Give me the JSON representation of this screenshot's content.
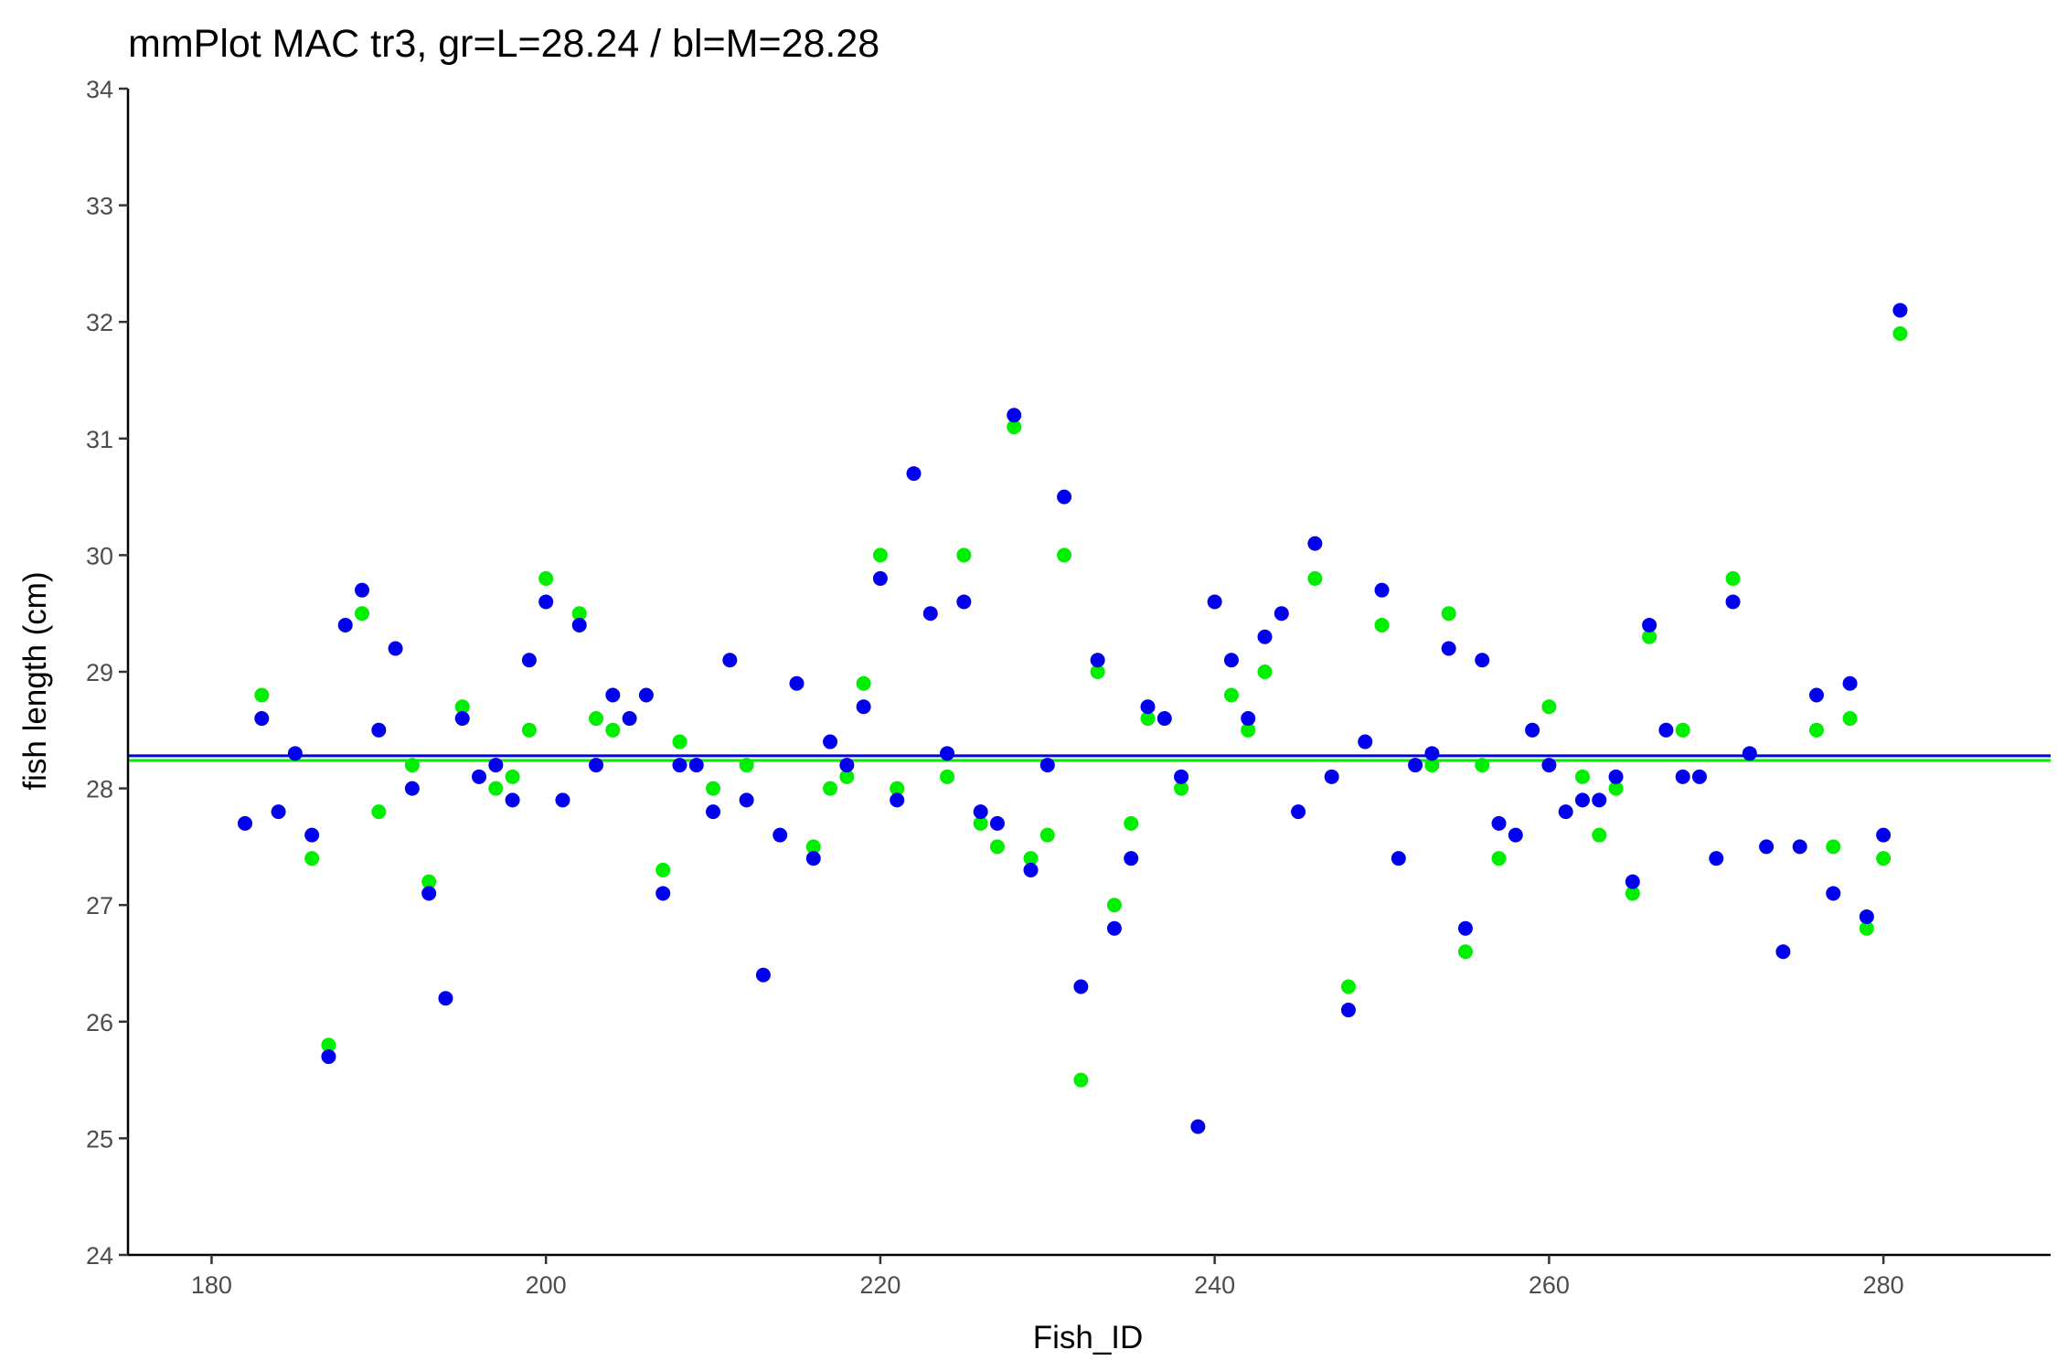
{
  "chart_data": {
    "type": "scatter",
    "title": "mmPlot MAC tr3, gr=L=28.24 / bl=M=28.28",
    "xlabel": "Fish_ID",
    "ylabel": "fish length (cm)",
    "xlim": [
      175,
      290
    ],
    "ylim": [
      24,
      34
    ],
    "xticks": [
      180,
      200,
      220,
      240,
      260,
      280
    ],
    "yticks": [
      24,
      25,
      26,
      27,
      28,
      29,
      30,
      31,
      32,
      33,
      34
    ],
    "grid": false,
    "legend": "none",
    "series": [
      {
        "color": "#00ee00",
        "mean_line": 28.24,
        "points": [
          [
            183,
            28.8
          ],
          [
            186,
            27.4
          ],
          [
            187,
            25.8
          ],
          [
            189,
            29.5
          ],
          [
            190,
            27.8
          ],
          [
            192,
            28.2
          ],
          [
            193,
            27.2
          ],
          [
            195,
            28.7
          ],
          [
            197,
            28.0
          ],
          [
            198,
            28.1
          ],
          [
            199,
            28.5
          ],
          [
            200,
            29.8
          ],
          [
            202,
            29.5
          ],
          [
            203,
            28.6
          ],
          [
            204,
            28.5
          ],
          [
            207,
            27.3
          ],
          [
            208,
            28.4
          ],
          [
            210,
            28.0
          ],
          [
            212,
            28.2
          ],
          [
            216,
            27.5
          ],
          [
            217,
            28.0
          ],
          [
            218,
            28.1
          ],
          [
            219,
            28.9
          ],
          [
            220,
            30.0
          ],
          [
            221,
            28.0
          ],
          [
            224,
            28.1
          ],
          [
            225,
            30.0
          ],
          [
            226,
            27.7
          ],
          [
            227,
            27.5
          ],
          [
            228,
            31.1
          ],
          [
            229,
            27.4
          ],
          [
            230,
            27.6
          ],
          [
            231,
            30.0
          ],
          [
            232,
            25.5
          ],
          [
            233,
            29.0
          ],
          [
            234,
            27.0
          ],
          [
            235,
            27.7
          ],
          [
            236,
            28.6
          ],
          [
            238,
            28.0
          ],
          [
            241,
            28.8
          ],
          [
            242,
            28.5
          ],
          [
            243,
            29.0
          ],
          [
            246,
            29.8
          ],
          [
            248,
            26.3
          ],
          [
            250,
            29.4
          ],
          [
            253,
            28.2
          ],
          [
            254,
            29.5
          ],
          [
            255,
            26.6
          ],
          [
            256,
            28.2
          ],
          [
            257,
            27.4
          ],
          [
            260,
            28.7
          ],
          [
            262,
            28.1
          ],
          [
            263,
            27.6
          ],
          [
            264,
            28.0
          ],
          [
            265,
            27.1
          ],
          [
            266,
            29.3
          ],
          [
            268,
            28.5
          ],
          [
            271,
            29.8
          ],
          [
            276,
            28.5
          ],
          [
            277,
            27.5
          ],
          [
            278,
            28.6
          ],
          [
            279,
            26.8
          ],
          [
            280,
            27.4
          ],
          [
            281,
            31.9
          ]
        ]
      },
      {
        "color": "#0000ee",
        "mean_line": 28.28,
        "points": [
          [
            182,
            27.7
          ],
          [
            183,
            28.6
          ],
          [
            184,
            27.8
          ],
          [
            185,
            28.3
          ],
          [
            186,
            27.6
          ],
          [
            187,
            25.7
          ],
          [
            188,
            29.4
          ],
          [
            189,
            29.7
          ],
          [
            190,
            28.5
          ],
          [
            191,
            29.2
          ],
          [
            192,
            28.0
          ],
          [
            193,
            27.1
          ],
          [
            194,
            26.2
          ],
          [
            195,
            28.6
          ],
          [
            196,
            28.1
          ],
          [
            197,
            28.2
          ],
          [
            198,
            27.9
          ],
          [
            199,
            29.1
          ],
          [
            200,
            29.6
          ],
          [
            201,
            27.9
          ],
          [
            202,
            29.4
          ],
          [
            203,
            28.2
          ],
          [
            204,
            28.8
          ],
          [
            205,
            28.6
          ],
          [
            206,
            28.8
          ],
          [
            207,
            27.1
          ],
          [
            208,
            28.2
          ],
          [
            209,
            28.2
          ],
          [
            210,
            27.8
          ],
          [
            211,
            29.1
          ],
          [
            212,
            27.9
          ],
          [
            213,
            26.4
          ],
          [
            214,
            27.6
          ],
          [
            215,
            28.9
          ],
          [
            216,
            27.4
          ],
          [
            217,
            28.4
          ],
          [
            218,
            28.2
          ],
          [
            219,
            28.7
          ],
          [
            220,
            29.8
          ],
          [
            221,
            27.9
          ],
          [
            222,
            30.7
          ],
          [
            223,
            29.5
          ],
          [
            224,
            28.3
          ],
          [
            225,
            29.6
          ],
          [
            226,
            27.8
          ],
          [
            227,
            27.7
          ],
          [
            228,
            31.2
          ],
          [
            229,
            27.3
          ],
          [
            230,
            28.2
          ],
          [
            231,
            30.5
          ],
          [
            232,
            26.3
          ],
          [
            233,
            29.1
          ],
          [
            234,
            26.8
          ],
          [
            235,
            27.4
          ],
          [
            236,
            28.7
          ],
          [
            237,
            28.6
          ],
          [
            238,
            28.1
          ],
          [
            239,
            25.1
          ],
          [
            240,
            29.6
          ],
          [
            241,
            29.1
          ],
          [
            242,
            28.6
          ],
          [
            243,
            29.3
          ],
          [
            244,
            29.5
          ],
          [
            245,
            27.8
          ],
          [
            246,
            30.1
          ],
          [
            247,
            28.1
          ],
          [
            248,
            26.1
          ],
          [
            249,
            28.4
          ],
          [
            250,
            29.7
          ],
          [
            251,
            27.4
          ],
          [
            252,
            28.2
          ],
          [
            253,
            28.3
          ],
          [
            254,
            29.2
          ],
          [
            255,
            26.8
          ],
          [
            256,
            29.1
          ],
          [
            257,
            27.7
          ],
          [
            258,
            27.6
          ],
          [
            259,
            28.5
          ],
          [
            260,
            28.2
          ],
          [
            261,
            27.8
          ],
          [
            262,
            27.9
          ],
          [
            263,
            27.9
          ],
          [
            264,
            28.1
          ],
          [
            265,
            27.2
          ],
          [
            266,
            29.4
          ],
          [
            267,
            28.5
          ],
          [
            268,
            28.1
          ],
          [
            269,
            28.1
          ],
          [
            270,
            27.4
          ],
          [
            271,
            29.6
          ],
          [
            272,
            28.3
          ],
          [
            273,
            27.5
          ],
          [
            274,
            26.6
          ],
          [
            275,
            27.5
          ],
          [
            276,
            28.8
          ],
          [
            277,
            27.1
          ],
          [
            278,
            28.9
          ],
          [
            279,
            26.9
          ],
          [
            280,
            27.6
          ],
          [
            281,
            32.1
          ]
        ]
      }
    ]
  }
}
